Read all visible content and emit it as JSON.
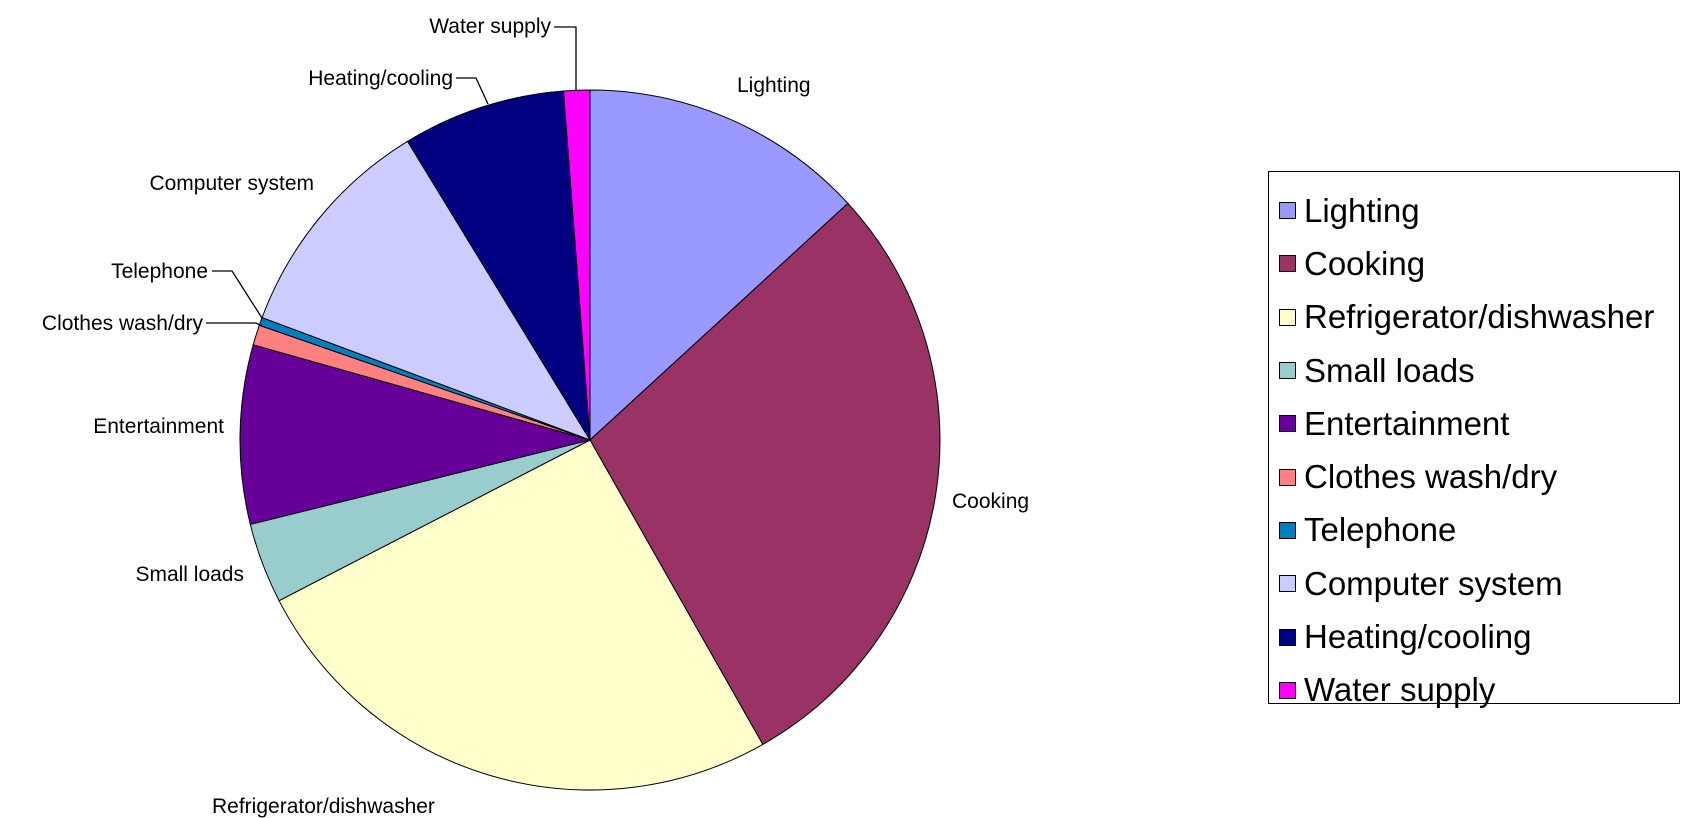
{
  "chart_data": {
    "type": "pie",
    "title": "",
    "legend_placement": "right",
    "slices": [
      {
        "label": "Lighting",
        "value": 14.2,
        "color": "#9999FF"
      },
      {
        "label": "Cooking",
        "value": 30.8,
        "color": "#993366"
      },
      {
        "label": "Refrigerator/dishwasher",
        "value": 27.6,
        "color": "#FFFFCC"
      },
      {
        "label": "Small loads",
        "value": 4.0,
        "color": "#99CCCC"
      },
      {
        "label": "Entertainment",
        "value": 8.9,
        "color": "#660099"
      },
      {
        "label": "Clothes wash/dry",
        "value": 1.0,
        "color": "#FF8080"
      },
      {
        "label": "Telephone",
        "value": 0.4,
        "color": "#0080C0"
      },
      {
        "label": "Computer system",
        "value": 11.4,
        "color": "#CCCCFF"
      },
      {
        "label": "Heating/cooling",
        "value": 8.1,
        "color": "#000080"
      },
      {
        "label": "Water supply",
        "value": 1.3,
        "color": "#FF00FF"
      }
    ]
  }
}
